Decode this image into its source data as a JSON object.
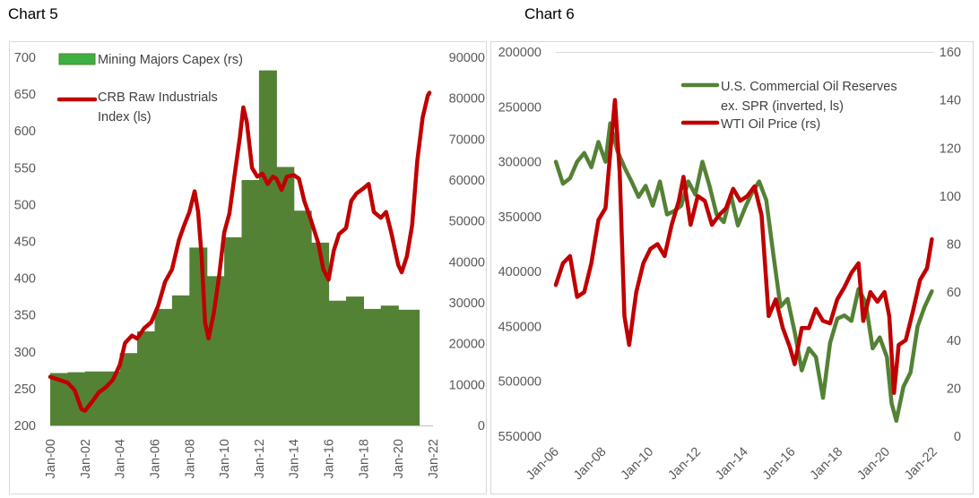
{
  "charts": {
    "left_heading": "Chart 5",
    "right_heading": "Chart 6"
  },
  "chart_data": [
    {
      "id": "chart5",
      "type": "bar+line",
      "title": "Chart 5",
      "x_ticks": [
        "Jan-00",
        "Jan-02",
        "Jan-04",
        "Jan-06",
        "Jan-08",
        "Jan-10",
        "Jan-12",
        "Jan-14",
        "Jan-16",
        "Jan-18",
        "Jan-20",
        "Jan-22"
      ],
      "x_range_years": [
        2000,
        2022
      ],
      "y_left": {
        "ticks": [
          200,
          250,
          300,
          350,
          400,
          450,
          500,
          550,
          600,
          650,
          700
        ],
        "range": [
          200,
          700
        ]
      },
      "y_right": {
        "ticks": [
          0,
          10000,
          20000,
          30000,
          40000,
          50000,
          60000,
          70000,
          80000,
          90000
        ],
        "range": [
          0,
          90000
        ]
      },
      "series": [
        {
          "name": "Mining Majors Capex (rs)",
          "kind": "step-bar",
          "axis": "right",
          "color": "#548235",
          "legend_color": "#3cb043",
          "points": [
            {
              "x": 2000.0,
              "y": 12800
            },
            {
              "x": 2001.0,
              "y": 13000
            },
            {
              "x": 2002.0,
              "y": 13200
            },
            {
              "x": 2004.0,
              "y": 17700
            },
            {
              "x": 2005.0,
              "y": 23000
            },
            {
              "x": 2006.0,
              "y": 28500
            },
            {
              "x": 2007.0,
              "y": 31800
            },
            {
              "x": 2008.0,
              "y": 43500
            },
            {
              "x": 2009.0,
              "y": 36500
            },
            {
              "x": 2010.0,
              "y": 46000
            },
            {
              "x": 2011.0,
              "y": 60000
            },
            {
              "x": 2012.0,
              "y": 86800
            },
            {
              "x": 2013.0,
              "y": 63200
            },
            {
              "x": 2014.0,
              "y": 52500
            },
            {
              "x": 2015.0,
              "y": 44700
            },
            {
              "x": 2016.0,
              "y": 30500
            },
            {
              "x": 2017.0,
              "y": 31500
            },
            {
              "x": 2018.0,
              "y": 28500
            },
            {
              "x": 2019.0,
              "y": 29300
            },
            {
              "x": 2020.0,
              "y": 28300
            }
          ],
          "end_x": 2021.2
        },
        {
          "name": "CRB Raw Industrials Index (ls)",
          "legend_lines": [
            "CRB Raw Industrials",
            "Index (ls)"
          ],
          "kind": "line",
          "axis": "left",
          "color": "#c00000",
          "points": [
            [
              2000.0,
              266
            ],
            [
              2000.5,
              262
            ],
            [
              2001.0,
              258
            ],
            [
              2001.4,
              248
            ],
            [
              2001.8,
              222
            ],
            [
              2002.0,
              220
            ],
            [
              2002.4,
              232
            ],
            [
              2002.8,
              245
            ],
            [
              2003.2,
              252
            ],
            [
              2003.6,
              262
            ],
            [
              2004.0,
              282
            ],
            [
              2004.3,
              312
            ],
            [
              2004.7,
              322
            ],
            [
              2005.0,
              318
            ],
            [
              2005.4,
              332
            ],
            [
              2005.8,
              340
            ],
            [
              2006.2,
              362
            ],
            [
              2006.6,
              395
            ],
            [
              2007.0,
              412
            ],
            [
              2007.4,
              452
            ],
            [
              2007.7,
              472
            ],
            [
              2008.0,
              490
            ],
            [
              2008.3,
              518
            ],
            [
              2008.5,
              490
            ],
            [
              2008.7,
              430
            ],
            [
              2008.9,
              340
            ],
            [
              2009.1,
              318
            ],
            [
              2009.4,
              352
            ],
            [
              2009.7,
              402
            ],
            [
              2010.0,
              462
            ],
            [
              2010.3,
              488
            ],
            [
              2010.6,
              540
            ],
            [
              2010.9,
              592
            ],
            [
              2011.1,
              632
            ],
            [
              2011.3,
              612
            ],
            [
              2011.6,
              550
            ],
            [
              2011.9,
              538
            ],
            [
              2012.2,
              542
            ],
            [
              2012.5,
              528
            ],
            [
              2012.8,
              538
            ],
            [
              2013.0,
              535
            ],
            [
              2013.3,
              520
            ],
            [
              2013.6,
              538
            ],
            [
              2014.0,
              540
            ],
            [
              2014.3,
              535
            ],
            [
              2014.6,
              505
            ],
            [
              2015.0,
              478
            ],
            [
              2015.4,
              448
            ],
            [
              2015.7,
              412
            ],
            [
              2016.0,
              398
            ],
            [
              2016.3,
              438
            ],
            [
              2016.6,
              460
            ],
            [
              2017.0,
              468
            ],
            [
              2017.3,
              505
            ],
            [
              2017.6,
              515
            ],
            [
              2018.0,
              522
            ],
            [
              2018.3,
              528
            ],
            [
              2018.6,
              490
            ],
            [
              2019.0,
              482
            ],
            [
              2019.3,
              490
            ],
            [
              2019.6,
              462
            ],
            [
              2020.0,
              418
            ],
            [
              2020.2,
              408
            ],
            [
              2020.5,
              430
            ],
            [
              2020.8,
              472
            ],
            [
              2021.1,
              560
            ],
            [
              2021.4,
              618
            ],
            [
              2021.7,
              648
            ],
            [
              2021.8,
              652
            ]
          ]
        }
      ]
    },
    {
      "id": "chart6",
      "type": "line",
      "title": "Chart 6",
      "x_ticks": [
        "Jan-06",
        "Jan-08",
        "Jan-10",
        "Jan-12",
        "Jan-14",
        "Jan-16",
        "Jan-18",
        "Jan-20",
        "Jan-22"
      ],
      "x_range_years": [
        2006,
        2022
      ],
      "y_left": {
        "ticks": [
          200000,
          250000,
          300000,
          350000,
          400000,
          450000,
          500000,
          550000
        ],
        "range": [
          200000,
          550000
        ],
        "inverted": true
      },
      "y_right": {
        "ticks": [
          0,
          20,
          40,
          60,
          80,
          100,
          120,
          140,
          160
        ],
        "range": [
          0,
          160
        ]
      },
      "series": [
        {
          "name": "U.S. Commercial Oil Reserves ex. SPR (inverted, ls)",
          "legend_lines": [
            "U.S. Commercial Oil Reserves",
            "ex. SPR (inverted, ls)"
          ],
          "kind": "line",
          "axis": "left",
          "color": "#548235",
          "points": [
            [
              2006.0,
              300000
            ],
            [
              2006.3,
              320000
            ],
            [
              2006.6,
              315000
            ],
            [
              2006.9,
              300000
            ],
            [
              2007.2,
              292000
            ],
            [
              2007.5,
              305000
            ],
            [
              2007.8,
              282000
            ],
            [
              2008.1,
              300000
            ],
            [
              2008.3,
              265000
            ],
            [
              2008.6,
              290000
            ],
            [
              2008.9,
              305000
            ],
            [
              2009.2,
              318000
            ],
            [
              2009.5,
              332000
            ],
            [
              2009.8,
              322000
            ],
            [
              2010.1,
              340000
            ],
            [
              2010.4,
              318000
            ],
            [
              2010.7,
              348000
            ],
            [
              2011.0,
              345000
            ],
            [
              2011.3,
              340000
            ],
            [
              2011.6,
              318000
            ],
            [
              2011.9,
              330000
            ],
            [
              2012.2,
              300000
            ],
            [
              2012.5,
              322000
            ],
            [
              2012.8,
              348000
            ],
            [
              2013.1,
              355000
            ],
            [
              2013.4,
              330000
            ],
            [
              2013.7,
              358000
            ],
            [
              2014.0,
              342000
            ],
            [
              2014.3,
              328000
            ],
            [
              2014.6,
              318000
            ],
            [
              2014.9,
              335000
            ],
            [
              2015.2,
              385000
            ],
            [
              2015.5,
              432000
            ],
            [
              2015.8,
              425000
            ],
            [
              2016.1,
              455000
            ],
            [
              2016.4,
              490000
            ],
            [
              2016.7,
              470000
            ],
            [
              2017.0,
              478000
            ],
            [
              2017.3,
              515000
            ],
            [
              2017.6,
              465000
            ],
            [
              2017.9,
              443000
            ],
            [
              2018.2,
              440000
            ],
            [
              2018.5,
              445000
            ],
            [
              2018.8,
              416000
            ],
            [
              2019.1,
              428000
            ],
            [
              2019.4,
              470000
            ],
            [
              2019.7,
              460000
            ],
            [
              2020.0,
              478000
            ],
            [
              2020.2,
              520000
            ],
            [
              2020.4,
              536000
            ],
            [
              2020.7,
              505000
            ],
            [
              2021.0,
              492000
            ],
            [
              2021.3,
              450000
            ],
            [
              2021.6,
              432000
            ],
            [
              2021.9,
              418000
            ]
          ]
        },
        {
          "name": "WTI Oil Price (rs)",
          "kind": "line",
          "axis": "right",
          "color": "#c00000",
          "points": [
            [
              2006.0,
              63
            ],
            [
              2006.3,
              72
            ],
            [
              2006.6,
              75
            ],
            [
              2006.9,
              58
            ],
            [
              2007.2,
              60
            ],
            [
              2007.5,
              72
            ],
            [
              2007.8,
              90
            ],
            [
              2008.1,
              95
            ],
            [
              2008.3,
              118
            ],
            [
              2008.5,
              140
            ],
            [
              2008.7,
              110
            ],
            [
              2008.9,
              50
            ],
            [
              2009.1,
              38
            ],
            [
              2009.4,
              60
            ],
            [
              2009.7,
              72
            ],
            [
              2010.0,
              78
            ],
            [
              2010.3,
              80
            ],
            [
              2010.6,
              75
            ],
            [
              2010.9,
              88
            ],
            [
              2011.2,
              98
            ],
            [
              2011.4,
              108
            ],
            [
              2011.7,
              88
            ],
            [
              2012.0,
              100
            ],
            [
              2012.3,
              98
            ],
            [
              2012.6,
              88
            ],
            [
              2012.9,
              92
            ],
            [
              2013.2,
              95
            ],
            [
              2013.5,
              103
            ],
            [
              2013.8,
              98
            ],
            [
              2014.1,
              100
            ],
            [
              2014.4,
              104
            ],
            [
              2014.7,
              92
            ],
            [
              2015.0,
              50
            ],
            [
              2015.3,
              57
            ],
            [
              2015.6,
              45
            ],
            [
              2015.9,
              37
            ],
            [
              2016.1,
              30
            ],
            [
              2016.4,
              45
            ],
            [
              2016.7,
              45
            ],
            [
              2017.0,
              53
            ],
            [
              2017.3,
              48
            ],
            [
              2017.6,
              47
            ],
            [
              2017.9,
              57
            ],
            [
              2018.2,
              62
            ],
            [
              2018.5,
              68
            ],
            [
              2018.8,
              72
            ],
            [
              2019.0,
              48
            ],
            [
              2019.3,
              60
            ],
            [
              2019.6,
              56
            ],
            [
              2019.9,
              60
            ],
            [
              2020.1,
              50
            ],
            [
              2020.3,
              18
            ],
            [
              2020.5,
              38
            ],
            [
              2020.8,
              40
            ],
            [
              2021.1,
              52
            ],
            [
              2021.4,
              65
            ],
            [
              2021.7,
              70
            ],
            [
              2021.9,
              82
            ]
          ]
        }
      ]
    }
  ]
}
